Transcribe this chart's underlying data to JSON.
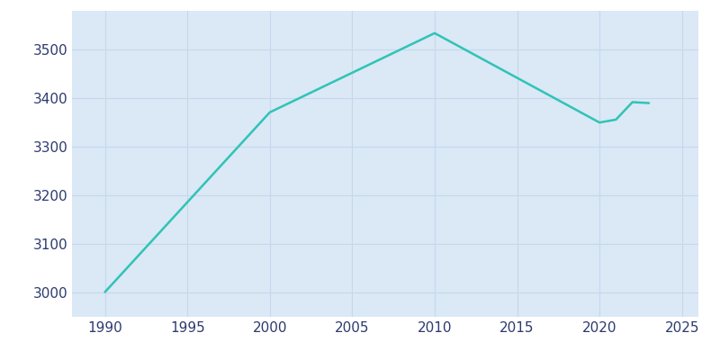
{
  "years": [
    1990,
    2000,
    2010,
    2020,
    2021,
    2022,
    2023
  ],
  "population": [
    3001,
    3371,
    3534,
    3350,
    3356,
    3392,
    3390
  ],
  "line_color": "#2ec4b6",
  "plot_bg_color": "#dbe8f5",
  "fig_bg_color": "#ffffff",
  "grid_color": "#c5d8ee",
  "tick_color": "#2d3a6e",
  "xlim": [
    1988,
    2026
  ],
  "ylim": [
    2950,
    3580
  ],
  "xticks": [
    1990,
    1995,
    2000,
    2005,
    2010,
    2015,
    2020,
    2025
  ],
  "yticks": [
    3000,
    3100,
    3200,
    3300,
    3400,
    3500
  ],
  "linewidth": 1.8,
  "tick_fontsize": 11
}
